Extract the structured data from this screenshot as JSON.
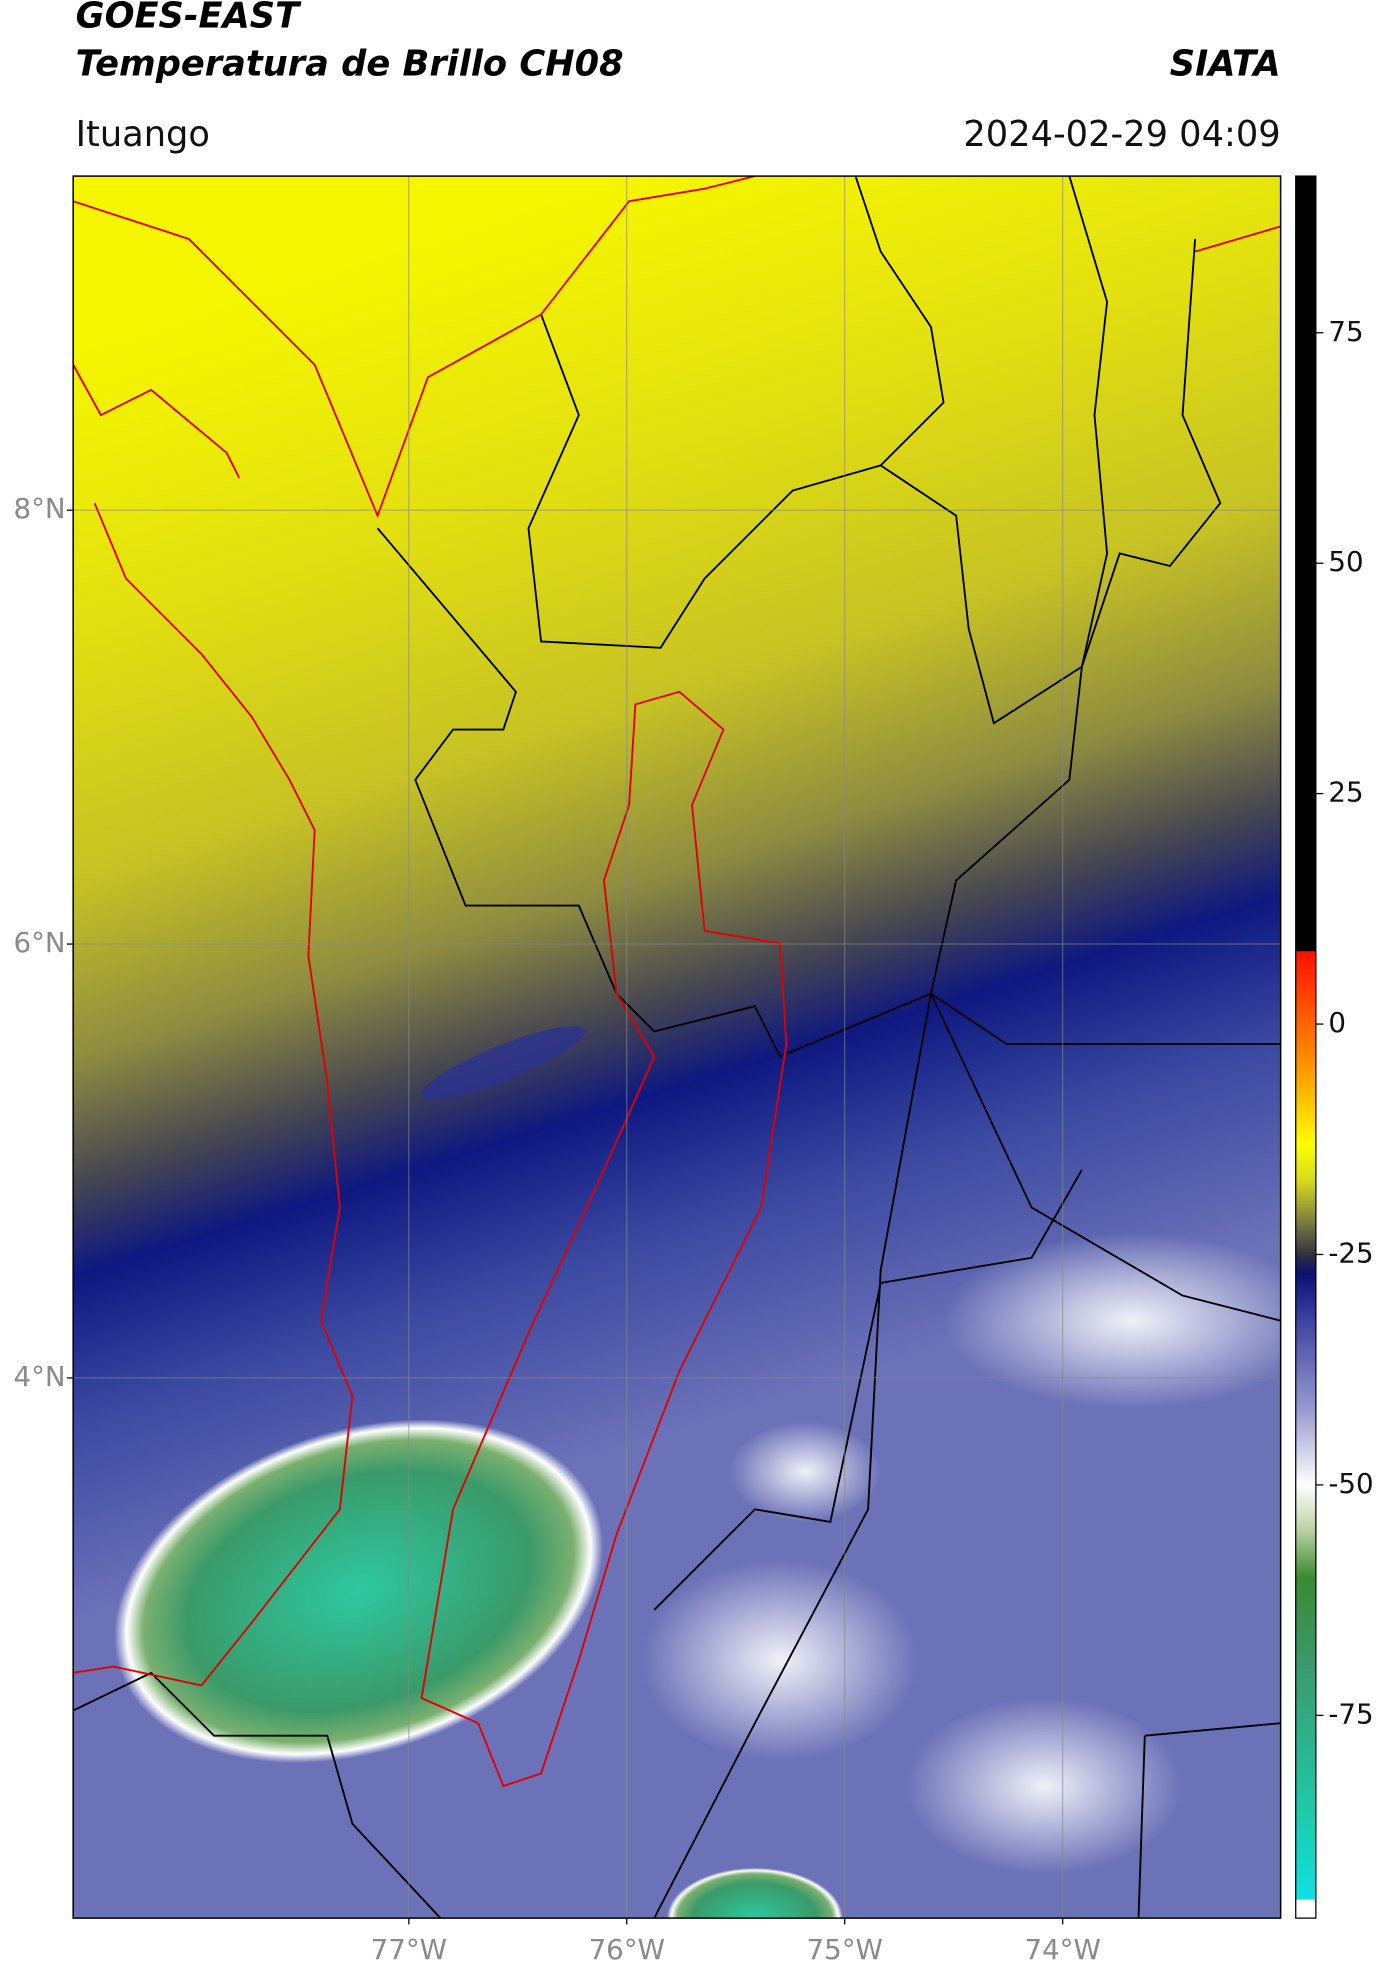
{
  "header": {
    "title": "GOES-EAST",
    "subtitle": "Temperatura de Brillo CH08",
    "source": "SIATA",
    "location": "Ituango",
    "datetime": "2024-02-29 04:09"
  },
  "map": {
    "lonlim": [
      -78.54,
      -73.0
    ],
    "latlim": [
      1.51,
      9.54
    ],
    "lat_ticks": [
      {
        "value": 8,
        "label": "8°N"
      },
      {
        "value": 6,
        "label": "6°N"
      },
      {
        "value": 4,
        "label": "4°N"
      }
    ],
    "lon_ticks": [
      {
        "value": -77,
        "label": "77°W"
      },
      {
        "value": -76,
        "label": "76°W"
      },
      {
        "value": -75,
        "label": "75°W"
      },
      {
        "value": -74,
        "label": "74°W"
      }
    ]
  },
  "colorbar": {
    "limits": [
      -97,
      92
    ],
    "ticks": [
      75,
      50,
      25,
      0,
      -25,
      -50,
      -75
    ],
    "colormap": [
      {
        "value": -97,
        "color": "#ffffff"
      },
      {
        "value": -95,
        "color": "#ffffff"
      },
      {
        "value": -94.9,
        "color": "#10e0e0"
      },
      {
        "value": -85,
        "color": "#20c8a8"
      },
      {
        "value": -70,
        "color": "#3a9a70"
      },
      {
        "value": -60,
        "color": "#3a8a30"
      },
      {
        "value": -55,
        "color": "#b8d0a0"
      },
      {
        "value": -50,
        "color": "#ffffff"
      },
      {
        "value": -42,
        "color": "#9a9cd0"
      },
      {
        "value": -32,
        "color": "#3c42a0"
      },
      {
        "value": -27,
        "color": "#0a1070"
      },
      {
        "value": -25,
        "color": "#303040"
      },
      {
        "value": -22,
        "color": "#707040"
      },
      {
        "value": -17,
        "color": "#d8d820"
      },
      {
        "value": -13,
        "color": "#ffff00"
      },
      {
        "value": -5,
        "color": "#ff9a00"
      },
      {
        "value": 7.9,
        "color": "#ff1000"
      },
      {
        "value": 8,
        "color": "#000000"
      },
      {
        "value": 92,
        "color": "#000000"
      }
    ]
  }
}
